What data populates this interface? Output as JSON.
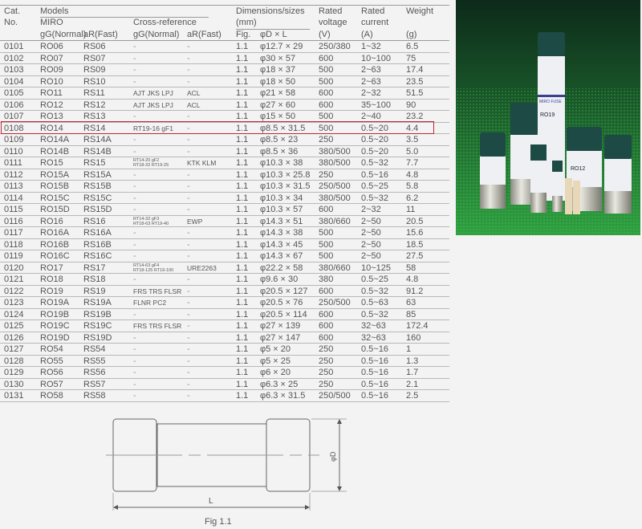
{
  "header": {
    "cat": "Cat.",
    "no": "No.",
    "models": "Models",
    "miro": "MIRO",
    "cross_reference": "Cross-reference",
    "gg_normal": "gG(Normal)",
    "ar_fast": "aR(Fast)",
    "gg_normal_2": "gG(Normal)",
    "ar_fast_2": "aR(Fast)",
    "dimensions": "Dimensions/sizes",
    "mm": "(mm)",
    "fig": "Fig.",
    "dl": "φD × L",
    "rated_voltage_1": "Rated",
    "rated_voltage_2": "voltage",
    "rated_voltage_3": "(V)",
    "rated_current_1": "Rated",
    "rated_current_2": "current",
    "rated_current_3": "(A)",
    "weight_1": "Weight",
    "weight_2": "(g)"
  },
  "highlighted_row": "0108",
  "highlight_color": "#c0263a",
  "rows": [
    [
      "0101",
      "RO06",
      "RS06",
      "-",
      "-",
      "1.1",
      "φ12.7 × 29",
      "250/380",
      "1~32",
      "6.5"
    ],
    [
      "0102",
      "RO07",
      "RS07",
      "-",
      "-",
      "1.1",
      "φ30 × 57",
      "600",
      "10~100",
      "75"
    ],
    [
      "0103",
      "RO09",
      "RS09",
      "-",
      "-",
      "1.1",
      "φ18 × 37",
      "500",
      "2~63",
      "17.4"
    ],
    [
      "0104",
      "RO10",
      "RS10",
      "-",
      "-",
      "1.1",
      "φ18 × 50",
      "500",
      "2~63",
      "23.5"
    ],
    [
      "0105",
      "RO11",
      "RS11",
      "AJT JKS LPJ",
      "ACL",
      "1.1",
      "φ21 × 58",
      "600",
      "2~32",
      "51.5"
    ],
    [
      "0106",
      "RO12",
      "RS12",
      "AJT JKS LPJ",
      "ACL",
      "1.1",
      "φ27 × 60",
      "600",
      "35~100",
      "90"
    ],
    [
      "0107",
      "RO13",
      "RS13",
      "-",
      "-",
      "1.1",
      "φ15 × 50",
      "500",
      "2~40",
      "23.2"
    ],
    [
      "0108",
      "RO14",
      "RS14",
      "RT19-16 gF1",
      "-",
      "1.1",
      "φ8.5 × 31.5",
      "500",
      "0.5~20",
      "4.4"
    ],
    [
      "0109",
      "RO14A",
      "RS14A",
      "-",
      "-",
      "1.1",
      "φ8.5 × 23",
      "250",
      "0.5~20",
      "3.5"
    ],
    [
      "0110",
      "RO14B",
      "RS14B",
      "-",
      "-",
      "1.1",
      "φ8.5 × 36",
      "380/500",
      "0.5~20",
      "5.0"
    ],
    [
      "0111",
      "RO15",
      "RS15",
      "RT14-20 gF2\nRT18-32 RT19-25",
      "KTK KLM",
      "1.1",
      "φ10.3 × 38",
      "380/500",
      "0.5~32",
      "7.7"
    ],
    [
      "0112",
      "RO15A",
      "RS15A",
      "-",
      "-",
      "1.1",
      "φ10.3 × 25.8",
      "250",
      "0.5~16",
      "4.8"
    ],
    [
      "0113",
      "RO15B",
      "RS15B",
      "-",
      "-",
      "1.1",
      "φ10.3 × 31.5",
      "250/500",
      "0.5~25",
      "5.8"
    ],
    [
      "0114",
      "RO15C",
      "RS15C",
      "-",
      "-",
      "1.1",
      "φ10.3 × 34",
      "380/500",
      "0.5~32",
      "6.2"
    ],
    [
      "0115",
      "RO15D",
      "RS15D",
      "-",
      "-",
      "1.1",
      "φ10.3 × 57",
      "600",
      "2~32",
      "11"
    ],
    [
      "0116",
      "RO16",
      "RS16",
      "RT14-32 gF3\nRT18-63 RT19-40",
      "EWP",
      "1.1",
      "φ14.3 × 51",
      "380/660",
      "2~50",
      "20.5"
    ],
    [
      "0117",
      "RO16A",
      "RS16A",
      "-",
      "-",
      "1.1",
      "φ14.3 × 38",
      "500",
      "2~50",
      "15.6"
    ],
    [
      "0118",
      "RO16B",
      "RS16B",
      "-",
      "-",
      "1.1",
      "φ14.3 × 45",
      "500",
      "2~50",
      "18.5"
    ],
    [
      "0119",
      "RO16C",
      "RS16C",
      "-",
      "-",
      "1.1",
      "φ14.3 × 67",
      "500",
      "2~50",
      "27.5"
    ],
    [
      "0120",
      "RO17",
      "RS17",
      "RT14-63 gF4\nRT18-125 RT19-100",
      "URE2263",
      "1.1",
      "φ22.2 × 58",
      "380/660",
      "10~125",
      "58"
    ],
    [
      "0121",
      "RO18",
      "RS18",
      "-",
      "-",
      "1.1",
      "φ9.6 × 30",
      "380",
      "0.5~25",
      "4.8"
    ],
    [
      "0122",
      "RO19",
      "RS19",
      "FRS TRS FLSR",
      "-",
      "1.1",
      "φ20.5 × 127",
      "600",
      "0.5~32",
      "91.2"
    ],
    [
      "0123",
      "RO19A",
      "RS19A",
      "FLNR PC2",
      "-",
      "1.1",
      "φ20.5 × 76",
      "250/500",
      "0.5~63",
      "63"
    ],
    [
      "0124",
      "RO19B",
      "RS19B",
      "-",
      "-",
      "1.1",
      "φ20.5 × 114",
      "600",
      "0.5~32",
      "85"
    ],
    [
      "0125",
      "RO19C",
      "RS19C",
      "FRS TRS FLSR",
      "-",
      "1.1",
      "φ27 × 139",
      "600",
      "32~63",
      "172.4"
    ],
    [
      "0126",
      "RO19D",
      "RS19D",
      "-",
      "-",
      "1.1",
      "φ27 × 147",
      "600",
      "32~63",
      "160"
    ],
    [
      "0127",
      "RO54",
      "RS54",
      "-",
      "-",
      "1.1",
      "φ5 × 20",
      "250",
      "0.5~16",
      "1"
    ],
    [
      "0128",
      "RO55",
      "RS55",
      "-",
      "-",
      "1.1",
      "φ5 × 25",
      "250",
      "0.5~16",
      "1.3"
    ],
    [
      "0129",
      "RO56",
      "RS56",
      "-",
      "-",
      "1.1",
      "φ6 × 20",
      "250",
      "0.5~16",
      "1.7"
    ],
    [
      "0130",
      "RO57",
      "RS57",
      "-",
      "-",
      "1.1",
      "φ6.3 × 25",
      "250",
      "0.5~16",
      "2.1"
    ],
    [
      "0131",
      "RO58",
      "RS58",
      "-",
      "-",
      "1.1",
      "φ6.3 × 31.5",
      "250/500",
      "0.5~16",
      "2.5"
    ]
  ],
  "figure": {
    "length_label": "L",
    "diameter_label": "φD",
    "caption": "Fig 1.1"
  },
  "photo": {
    "labels": [
      "MIRO FUSE",
      "RO19",
      "RO12"
    ]
  }
}
